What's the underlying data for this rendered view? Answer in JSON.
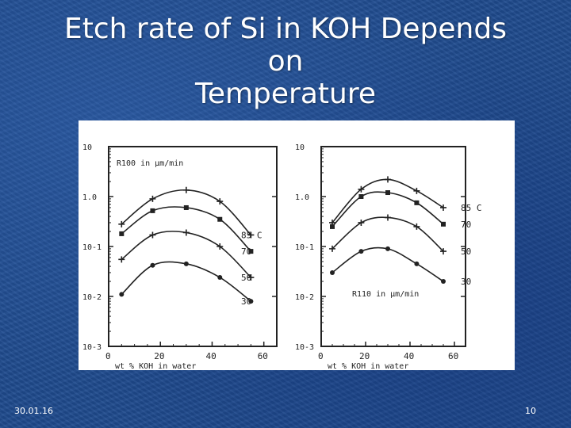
{
  "slide": {
    "title_lines": [
      "Etch rate of Si in KOH Depends",
      "on",
      "Temperature"
    ],
    "footer_date": "30.01.16",
    "page_number": "10"
  },
  "chart_data": [
    {
      "type": "line",
      "title": "R100 in µm/min",
      "xlabel": "wt % KOH in water",
      "ylabel": "",
      "y_scale": "log",
      "xlim": [
        0,
        65
      ],
      "ylim": [
        0.001,
        10
      ],
      "x_ticks": [
        "0",
        "20",
        "40",
        "60"
      ],
      "y_ticks": [
        "10",
        "1.0",
        "10-1",
        "10-2",
        "10-3"
      ],
      "y_tick_values": [
        10,
        1,
        0.1,
        0.01,
        0.001
      ],
      "series": [
        {
          "name": "85 C",
          "x": [
            5,
            17,
            30,
            43,
            55
          ],
          "y": [
            0.28,
            0.9,
            1.35,
            0.8,
            0.17
          ]
        },
        {
          "name": "70",
          "x": [
            5,
            17,
            30,
            43,
            55
          ],
          "y": [
            0.18,
            0.52,
            0.6,
            0.35,
            0.08
          ]
        },
        {
          "name": "50",
          "x": [
            5,
            17,
            30,
            43,
            55
          ],
          "y": [
            0.055,
            0.17,
            0.19,
            0.1,
            0.024
          ]
        },
        {
          "name": "30",
          "x": [
            5,
            17,
            30,
            43,
            55
          ],
          "y": [
            0.011,
            0.042,
            0.045,
            0.024,
            0.008
          ]
        }
      ]
    },
    {
      "type": "line",
      "title": "R110 in µm/min",
      "xlabel": "wt % KOH in water",
      "ylabel": "",
      "y_scale": "log",
      "xlim": [
        0,
        65
      ],
      "ylim": [
        0.001,
        10
      ],
      "x_ticks": [
        "0",
        "20",
        "40",
        "60"
      ],
      "y_ticks": [
        "10",
        "1.0",
        "10-1",
        "10-2",
        "10-3"
      ],
      "y_tick_values": [
        10,
        1,
        0.1,
        0.01,
        0.001
      ],
      "series": [
        {
          "name": "85 C",
          "x": [
            5,
            18,
            30,
            43,
            55
          ],
          "y": [
            0.3,
            1.4,
            2.2,
            1.3,
            0.6
          ]
        },
        {
          "name": "70",
          "x": [
            5,
            18,
            30,
            43,
            55
          ],
          "y": [
            0.25,
            1.0,
            1.2,
            0.75,
            0.28
          ]
        },
        {
          "name": "50",
          "x": [
            5,
            18,
            30,
            43,
            55
          ],
          "y": [
            0.09,
            0.3,
            0.38,
            0.25,
            0.08
          ]
        },
        {
          "name": "30",
          "x": [
            5,
            18,
            30,
            43,
            55
          ],
          "y": [
            0.03,
            0.08,
            0.09,
            0.045,
            0.02
          ]
        }
      ]
    }
  ]
}
